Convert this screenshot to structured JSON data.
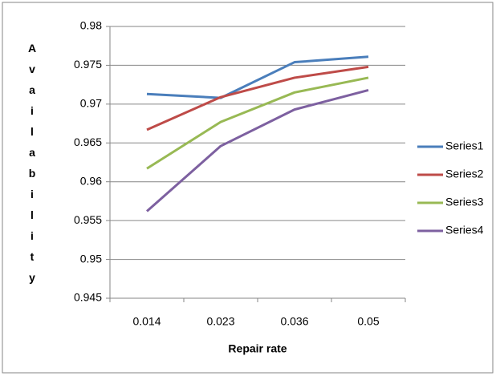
{
  "chart_data": {
    "type": "line",
    "x_label": "Repair rate",
    "y_label": "Availability",
    "categories": [
      "0.014",
      "0.023",
      "0.036",
      "0.05"
    ],
    "series": [
      {
        "name": "Series1",
        "color": "#4a7ebb",
        "values": [
          0.9713,
          0.9708,
          0.9754,
          0.9761
        ]
      },
      {
        "name": "Series2",
        "color": "#be4b48",
        "values": [
          0.9667,
          0.9709,
          0.9734,
          0.9748
        ]
      },
      {
        "name": "Series3",
        "color": "#98b954",
        "values": [
          0.9617,
          0.9677,
          0.9715,
          0.9734
        ]
      },
      {
        "name": "Series4",
        "color": "#7d60a0",
        "values": [
          0.9562,
          0.9646,
          0.9693,
          0.9718
        ]
      }
    ],
    "ylim": [
      0.945,
      0.98
    ],
    "yticks": [
      0.945,
      0.95,
      0.955,
      0.96,
      0.965,
      0.97,
      0.975,
      0.98
    ],
    "grid": true,
    "legend": "right"
  }
}
